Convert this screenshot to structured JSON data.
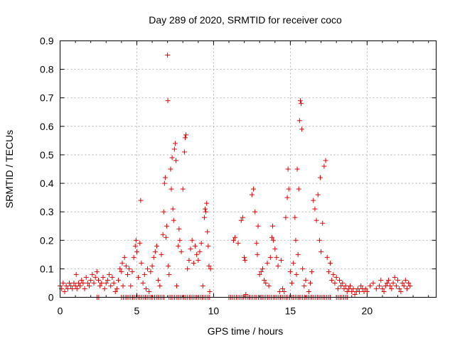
{
  "chart_data": {
    "type": "scatter",
    "title": "Day 289 of 2020, SRMTID for receiver coco",
    "xlabel": "GPS time / hours",
    "ylabel": "SRMTID / TECUs",
    "xlim": [
      0,
      24.5
    ],
    "ylim": [
      0,
      0.9
    ],
    "xticks": [
      "0",
      "5",
      "10",
      "15",
      "20"
    ],
    "xtick_values": [
      0,
      5,
      10,
      15,
      20
    ],
    "yticks": [
      "0",
      "0.1",
      "0.2",
      "0.3",
      "0.4",
      "0.5",
      "0.6",
      "0.7",
      "0.8",
      "0.9"
    ],
    "ytick_values": [
      0,
      0.1,
      0.2,
      0.3,
      0.4,
      0.5,
      0.6,
      0.7,
      0.8,
      0.9
    ],
    "grid": true,
    "marker": "+",
    "color": "#e00000",
    "series": [
      {
        "name": "SRMTID",
        "points": [
          [
            0.0,
            0.04
          ],
          [
            0.1,
            0.03
          ],
          [
            0.2,
            0.05
          ],
          [
            0.3,
            0.02
          ],
          [
            0.4,
            0.04
          ],
          [
            0.5,
            0.03
          ],
          [
            0.6,
            0.05
          ],
          [
            0.7,
            0.04
          ],
          [
            0.8,
            0.03
          ],
          [
            0.9,
            0.05
          ],
          [
            1.0,
            0.04
          ],
          [
            1.05,
            0.08
          ],
          [
            1.1,
            0.03
          ],
          [
            1.2,
            0.05
          ],
          [
            1.3,
            0.04
          ],
          [
            1.4,
            0.06
          ],
          [
            1.5,
            0.05
          ],
          [
            1.6,
            0.03
          ],
          [
            1.7,
            0.07
          ],
          [
            1.8,
            0.05
          ],
          [
            1.9,
            0.04
          ],
          [
            2.0,
            0.06
          ],
          [
            2.1,
            0.08
          ],
          [
            2.2,
            0.05
          ],
          [
            2.3,
            0.07
          ],
          [
            2.4,
            0.09
          ],
          [
            2.5,
            0.06
          ],
          [
            2.6,
            0.04
          ],
          [
            2.7,
            0.05
          ],
          [
            2.8,
            0.07
          ],
          [
            2.9,
            0.03
          ],
          [
            3.0,
            0.05
          ],
          [
            3.1,
            0.06
          ],
          [
            3.2,
            0.08
          ],
          [
            3.3,
            0.04
          ],
          [
            3.4,
            0.07
          ],
          [
            3.5,
            0.05
          ],
          [
            3.6,
            0.02
          ],
          [
            3.7,
            0.03
          ],
          [
            3.8,
            0.06
          ],
          [
            3.9,
            0.1
          ],
          [
            4.0,
            0.09
          ],
          [
            4.05,
            0.12
          ],
          [
            4.1,
            0.04
          ],
          [
            4.2,
            0.14
          ],
          [
            4.3,
            0.11
          ],
          [
            4.4,
            0.08
          ],
          [
            4.5,
            0.1
          ],
          [
            4.6,
            0.04
          ],
          [
            4.7,
            0.09
          ],
          [
            4.8,
            0.14
          ],
          [
            4.9,
            0.18
          ],
          [
            4.95,
            0.2
          ],
          [
            5.0,
            0.16
          ],
          [
            5.1,
            0.07
          ],
          [
            5.2,
            0.19
          ],
          [
            5.25,
            0.34
          ],
          [
            5.3,
            0.12
          ],
          [
            5.4,
            0.05
          ],
          [
            5.5,
            0.08
          ],
          [
            5.6,
            0.03
          ],
          [
            5.7,
            0.1
          ],
          [
            5.8,
            0.02
          ],
          [
            5.9,
            0.09
          ],
          [
            6.0,
            0.11
          ],
          [
            6.1,
            0.14
          ],
          [
            6.2,
            0.16
          ],
          [
            6.3,
            0.18
          ],
          [
            6.4,
            0.06
          ],
          [
            6.5,
            0.04
          ],
          [
            6.6,
            0.15
          ],
          [
            6.7,
            0.22
          ],
          [
            6.75,
            0.3
          ],
          [
            6.8,
            0.4
          ],
          [
            6.85,
            0.42
          ],
          [
            6.9,
            0.21
          ],
          [
            6.95,
            0.25
          ],
          [
            7.0,
            0.85
          ],
          [
            7.02,
            0.69
          ],
          [
            7.05,
            0.11
          ],
          [
            7.1,
            0.08
          ],
          [
            7.2,
            0.45
          ],
          [
            7.25,
            0.38
          ],
          [
            7.3,
            0.49
          ],
          [
            7.35,
            0.31
          ],
          [
            7.4,
            0.27
          ],
          [
            7.45,
            0.52
          ],
          [
            7.5,
            0.54
          ],
          [
            7.55,
            0.48
          ],
          [
            7.6,
            0.04
          ],
          [
            7.7,
            0.18
          ],
          [
            7.75,
            0.24
          ],
          [
            7.8,
            0.2
          ],
          [
            7.9,
            0.16
          ],
          [
            8.0,
            0.38
          ],
          [
            8.1,
            0.51
          ],
          [
            8.15,
            0.56
          ],
          [
            8.2,
            0.57
          ],
          [
            8.3,
            0.1
          ],
          [
            8.4,
            0.13
          ],
          [
            8.5,
            0.17
          ],
          [
            8.6,
            0.2
          ],
          [
            8.7,
            0.12
          ],
          [
            8.8,
            0.18
          ],
          [
            8.9,
            0.15
          ],
          [
            9.0,
            0.13
          ],
          [
            9.1,
            0.16
          ],
          [
            9.2,
            0.19
          ],
          [
            9.3,
            0.04
          ],
          [
            9.4,
            0.28
          ],
          [
            9.45,
            0.31
          ],
          [
            9.5,
            0.3
          ],
          [
            9.55,
            0.33
          ],
          [
            9.6,
            0.23
          ],
          [
            9.65,
            0.18
          ],
          [
            9.7,
            0.11
          ],
          [
            9.75,
            0.02
          ],
          [
            9.8,
            0.1
          ],
          [
            11.3,
            0.2
          ],
          [
            11.4,
            0.21
          ],
          [
            11.6,
            0.19
          ],
          [
            11.8,
            0.27
          ],
          [
            11.9,
            0.28
          ],
          [
            12.0,
            0.14
          ],
          [
            12.05,
            0.13
          ],
          [
            12.1,
            0.01
          ],
          [
            12.5,
            0.36
          ],
          [
            12.6,
            0.38
          ],
          [
            12.7,
            0.3
          ],
          [
            12.8,
            0.19
          ],
          [
            12.85,
            0.15
          ],
          [
            12.9,
            0.25
          ],
          [
            13.0,
            0.08
          ],
          [
            13.1,
            0.09
          ],
          [
            13.2,
            0.1
          ],
          [
            13.3,
            0.06
          ],
          [
            13.4,
            0.05
          ],
          [
            13.5,
            0.12
          ],
          [
            13.6,
            0.04
          ],
          [
            13.7,
            0.14
          ],
          [
            13.8,
            0.21
          ],
          [
            13.85,
            0.25
          ],
          [
            13.9,
            0.2
          ],
          [
            14.0,
            0.17
          ],
          [
            14.1,
            0.14
          ],
          [
            14.2,
            0.11
          ],
          [
            14.3,
            0.02
          ],
          [
            14.4,
            0.13
          ],
          [
            14.5,
            0.03
          ],
          [
            14.6,
            0.02
          ],
          [
            14.7,
            0.28
          ],
          [
            14.8,
            0.35
          ],
          [
            14.85,
            0.45
          ],
          [
            14.9,
            0.38
          ],
          [
            15.0,
            0.09
          ],
          [
            15.1,
            0.05
          ],
          [
            15.2,
            0.12
          ],
          [
            15.3,
            0.28
          ],
          [
            15.35,
            0.2
          ],
          [
            15.4,
            0.08
          ],
          [
            15.45,
            0.45
          ],
          [
            15.5,
            0.15
          ],
          [
            15.55,
            0.38
          ],
          [
            15.6,
            0.62
          ],
          [
            15.65,
            0.69
          ],
          [
            15.7,
            0.68
          ],
          [
            15.75,
            0.59
          ],
          [
            15.8,
            0.1
          ],
          [
            15.9,
            0.04
          ],
          [
            16.0,
            0.06
          ],
          [
            16.2,
            0.02
          ],
          [
            16.3,
            0.05
          ],
          [
            16.4,
            0.09
          ],
          [
            16.5,
            0.34
          ],
          [
            16.6,
            0.31
          ],
          [
            16.7,
            0.27
          ],
          [
            16.8,
            0.36
          ],
          [
            16.9,
            0.2
          ],
          [
            16.95,
            0.42
          ],
          [
            17.0,
            0.16
          ],
          [
            17.1,
            0.26
          ],
          [
            17.2,
            0.46
          ],
          [
            17.3,
            0.48
          ],
          [
            17.4,
            0.14
          ],
          [
            17.5,
            0.09
          ],
          [
            17.6,
            0.12
          ],
          [
            17.7,
            0.06
          ],
          [
            17.8,
            0.08
          ],
          [
            17.9,
            0.05
          ],
          [
            18.0,
            0.07
          ],
          [
            18.1,
            0.03
          ],
          [
            18.2,
            0.06
          ],
          [
            18.3,
            0.04
          ],
          [
            18.4,
            0.05
          ],
          [
            18.5,
            0.03
          ],
          [
            18.6,
            0.04
          ],
          [
            18.7,
            0.02
          ],
          [
            18.8,
            0.03
          ],
          [
            18.9,
            0.04
          ],
          [
            19.0,
            0.02
          ],
          [
            19.1,
            0.03
          ],
          [
            19.2,
            0.01
          ],
          [
            19.3,
            0.02
          ],
          [
            19.4,
            0.03
          ],
          [
            19.5,
            0.02
          ],
          [
            19.6,
            0.04
          ],
          [
            19.7,
            0.03
          ],
          [
            19.8,
            0.02
          ],
          [
            19.9,
            0.03
          ],
          [
            20.0,
            0.02
          ],
          [
            20.2,
            0.04
          ],
          [
            20.4,
            0.05
          ],
          [
            20.6,
            0.03
          ],
          [
            20.8,
            0.04
          ],
          [
            20.9,
            0.06
          ],
          [
            21.0,
            0.03
          ],
          [
            21.1,
            0.02
          ],
          [
            21.2,
            0.04
          ],
          [
            21.3,
            0.05
          ],
          [
            21.4,
            0.06
          ],
          [
            21.5,
            0.04
          ],
          [
            21.6,
            0.03
          ],
          [
            21.7,
            0.05
          ],
          [
            21.8,
            0.07
          ],
          [
            21.9,
            0.04
          ],
          [
            22.0,
            0.06
          ],
          [
            22.1,
            0.03
          ],
          [
            22.2,
            0.02
          ],
          [
            22.3,
            0.05
          ],
          [
            22.4,
            0.04
          ],
          [
            22.5,
            0.06
          ],
          [
            22.6,
            0.03
          ],
          [
            22.7,
            0.05
          ],
          [
            22.8,
            0.04
          ]
        ],
        "zero_segments": [
          [
            2.4,
            2.55
          ],
          [
            4.0,
            6.8
          ],
          [
            7.1,
            9.8
          ],
          [
            11.0,
            17.6
          ],
          [
            18.0,
            18.8
          ]
        ]
      }
    ]
  }
}
